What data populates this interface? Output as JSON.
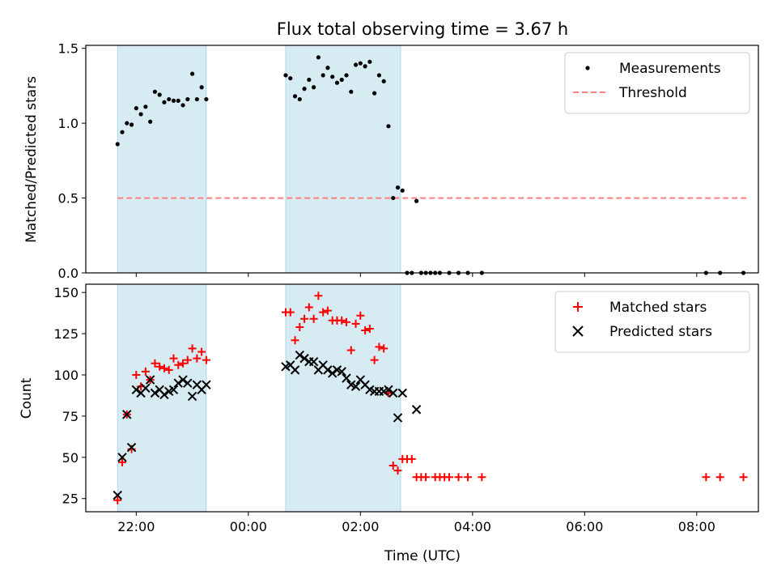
{
  "title": "Flux total observing time = 3.67 h",
  "chart_data": [
    {
      "type": "scatter",
      "xlabel": "",
      "ylabel": "Matched/Predicted stars",
      "ylim": [
        0,
        1.52
      ],
      "yticks": [
        0.0,
        0.5,
        1.0,
        1.5
      ],
      "ytick_labels": [
        "0.0",
        "0.5",
        "1.0",
        "1.5"
      ],
      "xlim_hours": [
        -2.9,
        9.1
      ],
      "legend_position": "top-right",
      "grid": false,
      "shaded_intervals": [
        {
          "start": "21:40",
          "end": "23:15"
        },
        {
          "start": "00:40",
          "end": "02:43"
        }
      ],
      "series": [
        {
          "name": "Measurements",
          "marker": "dot",
          "color": "#000000",
          "points": [
            [
              "21:40",
              0.86
            ],
            [
              "21:45",
              0.94
            ],
            [
              "21:50",
              1.0
            ],
            [
              "21:55",
              0.99
            ],
            [
              "22:00",
              1.1
            ],
            [
              "22:05",
              1.06
            ],
            [
              "22:10",
              1.11
            ],
            [
              "22:15",
              1.01
            ],
            [
              "22:20",
              1.21
            ],
            [
              "22:25",
              1.19
            ],
            [
              "22:30",
              1.14
            ],
            [
              "22:35",
              1.16
            ],
            [
              "22:40",
              1.15
            ],
            [
              "22:45",
              1.15
            ],
            [
              "22:50",
              1.12
            ],
            [
              "22:55",
              1.16
            ],
            [
              "23:00",
              1.33
            ],
            [
              "23:05",
              1.16
            ],
            [
              "23:10",
              1.24
            ],
            [
              "23:15",
              1.16
            ],
            [
              "00:40",
              1.32
            ],
            [
              "00:45",
              1.3
            ],
            [
              "00:50",
              1.18
            ],
            [
              "00:55",
              1.16
            ],
            [
              "01:00",
              1.23
            ],
            [
              "01:05",
              1.29
            ],
            [
              "01:10",
              1.24
            ],
            [
              "01:15",
              1.44
            ],
            [
              "01:20",
              1.32
            ],
            [
              "01:25",
              1.37
            ],
            [
              "01:30",
              1.31
            ],
            [
              "01:35",
              1.27
            ],
            [
              "01:40",
              1.29
            ],
            [
              "01:45",
              1.32
            ],
            [
              "01:50",
              1.21
            ],
            [
              "01:55",
              1.39
            ],
            [
              "02:00",
              1.4
            ],
            [
              "02:05",
              1.38
            ],
            [
              "02:10",
              1.41
            ],
            [
              "02:15",
              1.2
            ],
            [
              "02:20",
              1.32
            ],
            [
              "02:25",
              1.28
            ],
            [
              "02:30",
              0.98
            ],
            [
              "02:35",
              0.5
            ],
            [
              "02:40",
              0.57
            ],
            [
              "02:45",
              0.55
            ],
            [
              "02:50",
              0.0
            ],
            [
              "02:55",
              0.0
            ],
            [
              "03:00",
              0.48
            ],
            [
              "03:05",
              0.0
            ],
            [
              "03:10",
              0.0
            ],
            [
              "03:15",
              0.0
            ],
            [
              "03:20",
              0.0
            ],
            [
              "03:25",
              0.0
            ],
            [
              "03:35",
              0.0
            ],
            [
              "03:45",
              0.0
            ],
            [
              "03:55",
              0.0
            ],
            [
              "04:10",
              0.0
            ],
            [
              "08:10",
              0.0
            ],
            [
              "08:25",
              0.0
            ],
            [
              "08:50",
              0.0
            ]
          ]
        },
        {
          "name": "Threshold",
          "type": "line",
          "style": "dashed",
          "color": "#ff7f7f",
          "points": [
            [
              "21:40",
              0.5
            ],
            [
              "08:55",
              0.5
            ]
          ]
        }
      ]
    },
    {
      "type": "scatter",
      "xlabel": "Time (UTC)",
      "ylabel": "Count",
      "ylim": [
        17,
        155
      ],
      "yticks": [
        25,
        50,
        75,
        100,
        125,
        150
      ],
      "ytick_labels": [
        "25",
        "50",
        "75",
        "100",
        "125",
        "150"
      ],
      "xticks": [
        "22:00",
        "00:00",
        "02:00",
        "04:00",
        "06:00",
        "08:00"
      ],
      "xlim_hours": [
        -2.9,
        9.1
      ],
      "legend_position": "top-right",
      "grid": false,
      "shaded_intervals": [
        {
          "start": "21:40",
          "end": "23:15"
        },
        {
          "start": "00:40",
          "end": "02:43"
        }
      ],
      "series": [
        {
          "name": "Matched stars",
          "marker": "plus",
          "color": "#ff0000",
          "points": [
            [
              "21:40",
              24
            ],
            [
              "21:45",
              47
            ],
            [
              "21:50",
              76
            ],
            [
              "21:55",
              55
            ],
            [
              "22:00",
              100
            ],
            [
              "22:05",
              93
            ],
            [
              "22:10",
              102
            ],
            [
              "22:15",
              97
            ],
            [
              "22:20",
              107
            ],
            [
              "22:25",
              105
            ],
            [
              "22:30",
              104
            ],
            [
              "22:35",
              103
            ],
            [
              "22:40",
              110
            ],
            [
              "22:45",
              106
            ],
            [
              "22:50",
              107
            ],
            [
              "22:55",
              109
            ],
            [
              "23:00",
              116
            ],
            [
              "23:05",
              110
            ],
            [
              "23:10",
              114
            ],
            [
              "23:15",
              109
            ],
            [
              "00:40",
              138
            ],
            [
              "00:45",
              138
            ],
            [
              "00:50",
              121
            ],
            [
              "00:55",
              129
            ],
            [
              "01:00",
              134
            ],
            [
              "01:05",
              141
            ],
            [
              "01:10",
              134
            ],
            [
              "01:15",
              148
            ],
            [
              "01:20",
              138
            ],
            [
              "01:25",
              139
            ],
            [
              "01:30",
              133
            ],
            [
              "01:35",
              133
            ],
            [
              "01:40",
              133
            ],
            [
              "01:45",
              132
            ],
            [
              "01:50",
              115
            ],
            [
              "01:55",
              131
            ],
            [
              "02:00",
              136
            ],
            [
              "02:05",
              127
            ],
            [
              "02:10",
              128
            ],
            [
              "02:15",
              109
            ],
            [
              "02:20",
              117
            ],
            [
              "02:25",
              116
            ],
            [
              "02:30",
              89
            ],
            [
              "02:35",
              45
            ],
            [
              "02:40",
              42
            ],
            [
              "02:45",
              49
            ],
            [
              "02:50",
              49
            ],
            [
              "02:55",
              49
            ],
            [
              "03:00",
              38
            ],
            [
              "03:05",
              38
            ],
            [
              "03:10",
              38
            ],
            [
              "03:20",
              38
            ],
            [
              "03:25",
              38
            ],
            [
              "03:30",
              38
            ],
            [
              "03:35",
              38
            ],
            [
              "03:45",
              38
            ],
            [
              "03:55",
              38
            ],
            [
              "04:10",
              38
            ],
            [
              "08:10",
              38
            ],
            [
              "08:25",
              38
            ],
            [
              "08:50",
              38
            ]
          ]
        },
        {
          "name": "Predicted stars",
          "marker": "x",
          "color": "#000000",
          "points": [
            [
              "21:40",
              27
            ],
            [
              "21:45",
              50
            ],
            [
              "21:50",
              76
            ],
            [
              "21:55",
              56
            ],
            [
              "22:00",
              91
            ],
            [
              "22:05",
              89
            ],
            [
              "22:10",
              92
            ],
            [
              "22:15",
              97
            ],
            [
              "22:20",
              89
            ],
            [
              "22:25",
              91
            ],
            [
              "22:30",
              88
            ],
            [
              "22:35",
              90
            ],
            [
              "22:40",
              91
            ],
            [
              "22:45",
              95
            ],
            [
              "22:50",
              97
            ],
            [
              "22:55",
              95
            ],
            [
              "23:00",
              87
            ],
            [
              "23:05",
              94
            ],
            [
              "23:10",
              91
            ],
            [
              "23:15",
              94
            ],
            [
              "00:40",
              105
            ],
            [
              "00:45",
              106
            ],
            [
              "00:50",
              103
            ],
            [
              "00:55",
              112
            ],
            [
              "01:00",
              110
            ],
            [
              "01:05",
              108
            ],
            [
              "01:10",
              108
            ],
            [
              "01:15",
              103
            ],
            [
              "01:20",
              106
            ],
            [
              "01:25",
              103
            ],
            [
              "01:30",
              101
            ],
            [
              "01:35",
              103
            ],
            [
              "01:40",
              102
            ],
            [
              "01:45",
              98
            ],
            [
              "01:50",
              94
            ],
            [
              "01:55",
              93
            ],
            [
              "02:00",
              97
            ],
            [
              "02:05",
              94
            ],
            [
              "02:10",
              91
            ],
            [
              "02:15",
              90
            ],
            [
              "02:20",
              90
            ],
            [
              "02:25",
              90
            ],
            [
              "02:30",
              91
            ],
            [
              "02:35",
              89
            ],
            [
              "02:40",
              74
            ],
            [
              "02:45",
              89
            ],
            [
              "03:00",
              79
            ]
          ]
        }
      ]
    }
  ]
}
